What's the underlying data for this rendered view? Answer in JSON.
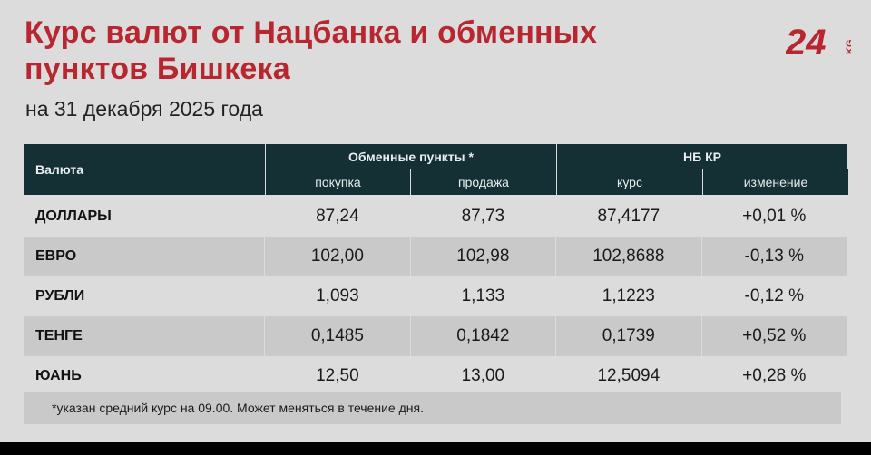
{
  "header": {
    "title": "Курс валют от Нацбанка и обменных пунктов Бишкека",
    "subtitle": "на 31 декабря 2025 года",
    "logo_text": "24kg"
  },
  "table": {
    "col_currency": "Валюта",
    "group_exchange": "Обменные пункты *",
    "group_nbkr": "НБ КР",
    "sub_buy": "покупка",
    "sub_sell": "продажа",
    "sub_rate": "курс",
    "sub_change": "изменение",
    "rows": [
      {
        "currency": "ДОЛЛАРЫ",
        "buy": "87,24",
        "sell": "87,73",
        "rate": "87,4177",
        "change": "+0,01 %"
      },
      {
        "currency": "ЕВРО",
        "buy": "102,00",
        "sell": "102,98",
        "rate": "102,8688",
        "change": "-0,13 %"
      },
      {
        "currency": "РУБЛИ",
        "buy": "1,093",
        "sell": "1,133",
        "rate": "1,1223",
        "change": "-0,12 %"
      },
      {
        "currency": "ТЕНГЕ",
        "buy": "0,1485",
        "sell": "0,1842",
        "rate": "0,1739",
        "change": "+0,52 %"
      },
      {
        "currency": "ЮАНЬ",
        "buy": "12,50",
        "sell": "13,00",
        "rate": "12,5094",
        "change": "+0,28 %"
      }
    ]
  },
  "footnote": "*указан средний курс на 09.00. Может меняться в течение дня.",
  "colors": {
    "accent": "#b82630",
    "header_bg": "#153035",
    "card_bg": "#dcdcdc",
    "alt_row": "#c9c9c9"
  }
}
